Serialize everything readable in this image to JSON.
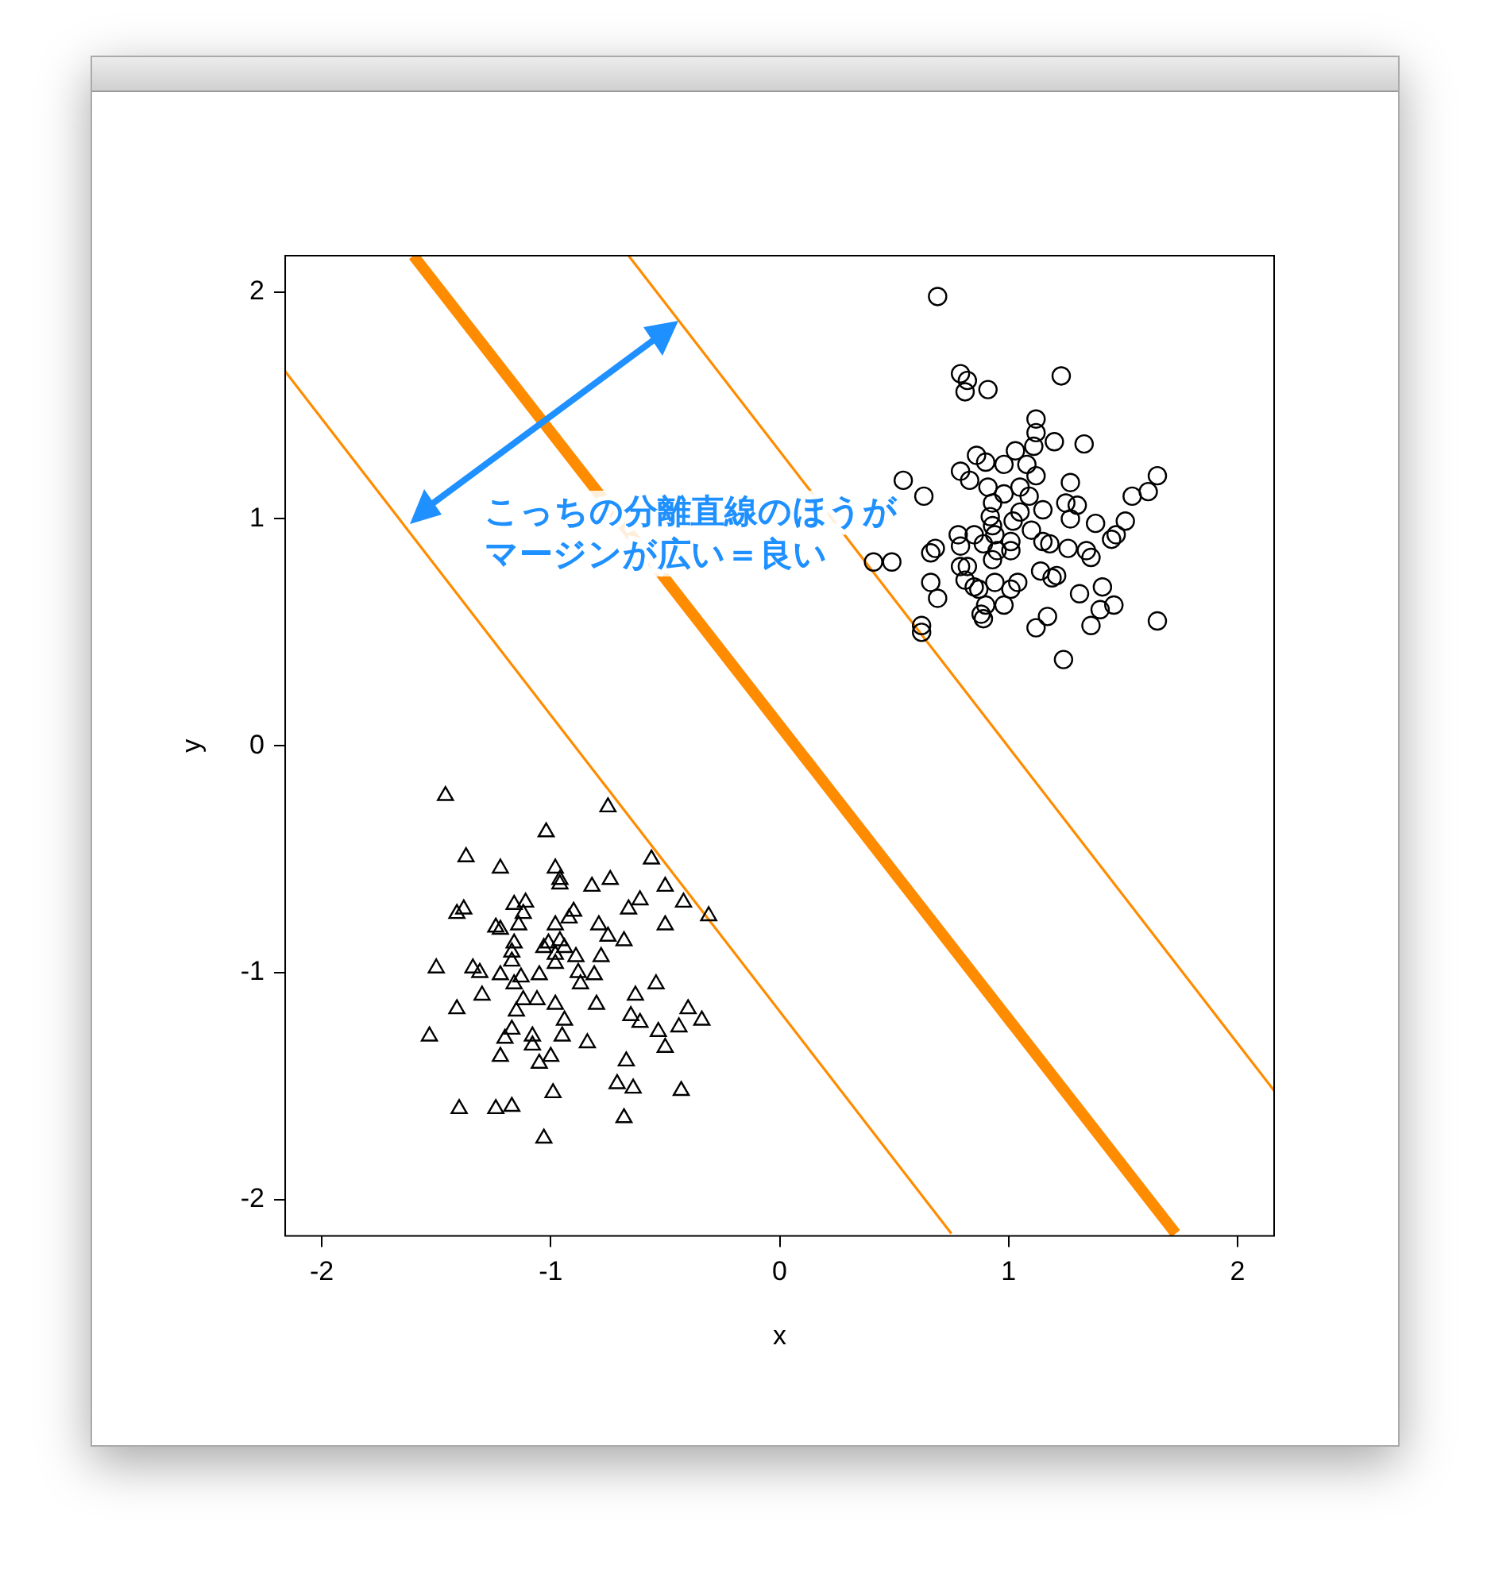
{
  "chart_data": {
    "type": "scatter",
    "xlabel": "x",
    "ylabel": "y",
    "xlim": [
      -2.16,
      2.16
    ],
    "ylim": [
      -2.16,
      2.16
    ],
    "xticks": [
      -2,
      -1,
      0,
      1,
      2
    ],
    "yticks": [
      -2,
      -1,
      0,
      1,
      2
    ],
    "annotations": [
      "こっちの分離直線のほうが",
      "マージンが広い＝良い"
    ],
    "series": [
      {
        "marker": "circle",
        "color": "#000000",
        "x": [
          0.69,
          0.79,
          0.82,
          0.81,
          0.91,
          1.23,
          1.12,
          1.12,
          1.11,
          1.2,
          1.33,
          0.86,
          1.03,
          0.79,
          0.83,
          0.9,
          0.98,
          1.08,
          1.12,
          0.54,
          0.91,
          0.98,
          1.05,
          1.27,
          1.65,
          1.61,
          1.54,
          0.93,
          1.09,
          1.25,
          1.3,
          0.63,
          1.05,
          1.15,
          0.92,
          1.02,
          1.27,
          1.38,
          0.93,
          1.51,
          1.1,
          0.94,
          0.78,
          0.85,
          1.47,
          1.45,
          0.89,
          1.01,
          1.15,
          0.68,
          0.66,
          0.79,
          0.95,
          1.01,
          1.18,
          1.26,
          1.34,
          1.36,
          0.93,
          0.41,
          0.49,
          0.79,
          0.82,
          1.14,
          1.19,
          1.21,
          0.81,
          0.94,
          1.04,
          0.66,
          0.85,
          0.87,
          1.01,
          1.41,
          0.69,
          1.31,
          0.9,
          0.98,
          1.46,
          1.4,
          0.88,
          0.89,
          1.17,
          1.12,
          1.36,
          1.65,
          0.62,
          0.62,
          1.24
        ],
        "values": [
          1.98,
          1.64,
          1.61,
          1.56,
          1.57,
          1.63,
          1.44,
          1.38,
          1.32,
          1.34,
          1.33,
          1.28,
          1.3,
          1.21,
          1.17,
          1.25,
          1.24,
          1.24,
          1.19,
          1.17,
          1.14,
          1.11,
          1.14,
          1.16,
          1.19,
          1.12,
          1.1,
          1.07,
          1.1,
          1.07,
          1.06,
          1.1,
          1.03,
          1.04,
          1.01,
          0.99,
          1.0,
          0.98,
          0.97,
          0.99,
          0.95,
          0.93,
          0.93,
          0.93,
          0.93,
          0.91,
          0.89,
          0.9,
          0.9,
          0.87,
          0.85,
          0.88,
          0.86,
          0.86,
          0.89,
          0.87,
          0.86,
          0.83,
          0.82,
          0.81,
          0.81,
          0.79,
          0.79,
          0.77,
          0.74,
          0.75,
          0.73,
          0.72,
          0.72,
          0.72,
          0.7,
          0.69,
          0.69,
          0.7,
          0.65,
          0.67,
          0.62,
          0.62,
          0.62,
          0.6,
          0.58,
          0.56,
          0.57,
          0.52,
          0.53,
          0.55,
          0.53,
          0.5,
          0.38
        ]
      },
      {
        "marker": "triangle",
        "color": "#000000",
        "x": [
          -1.46,
          -0.75,
          -1.02,
          -1.37,
          -1.22,
          -0.98,
          -0.96,
          -0.96,
          -0.74,
          -0.82,
          -0.56,
          -0.5,
          -0.61,
          -0.66,
          -0.42,
          -0.31,
          -0.5,
          -1.41,
          -1.38,
          -1.16,
          -1.11,
          -1.12,
          -0.9,
          -0.92,
          -0.98,
          -1.14,
          -1.24,
          -1.22,
          -0.79,
          -0.75,
          -0.68,
          -0.96,
          -1.01,
          -1.16,
          -0.94,
          -1.03,
          -1.17,
          -0.98,
          -0.78,
          -0.89,
          -0.98,
          -1.17,
          -1.5,
          -1.34,
          -1.31,
          -1.22,
          -1.13,
          -1.05,
          -0.88,
          -0.81,
          -0.87,
          -0.54,
          -1.3,
          -1.16,
          -0.63,
          -1.12,
          -1.06,
          -0.98,
          -0.8,
          -1.41,
          -1.15,
          -0.65,
          -0.61,
          -0.94,
          -0.4,
          -0.34,
          -0.44,
          -0.53,
          -1.53,
          -1.17,
          -1.2,
          -1.08,
          -1.08,
          -0.95,
          -0.84,
          -0.5,
          -1.22,
          -1.0,
          -1.05,
          -0.67,
          -0.71,
          -0.64,
          -0.43,
          -0.99,
          -1.4,
          -1.24,
          -1.17,
          -0.68,
          -1.03
        ],
        "values": [
          -0.22,
          -0.27,
          -0.38,
          -0.49,
          -0.54,
          -0.54,
          -0.59,
          -0.61,
          -0.59,
          -0.62,
          -0.5,
          -0.62,
          -0.68,
          -0.72,
          -0.69,
          -0.75,
          -0.79,
          -0.74,
          -0.72,
          -0.7,
          -0.69,
          -0.74,
          -0.73,
          -0.76,
          -0.79,
          -0.79,
          -0.8,
          -0.81,
          -0.79,
          -0.84,
          -0.86,
          -0.86,
          -0.87,
          -0.87,
          -0.89,
          -0.89,
          -0.91,
          -0.92,
          -0.93,
          -0.93,
          -0.96,
          -0.95,
          -0.98,
          -0.98,
          -1.0,
          -1.01,
          -1.02,
          -1.01,
          -1.0,
          -1.01,
          -1.05,
          -1.05,
          -1.1,
          -1.05,
          -1.1,
          -1.12,
          -1.12,
          -1.14,
          -1.14,
          -1.16,
          -1.17,
          -1.19,
          -1.22,
          -1.21,
          -1.16,
          -1.21,
          -1.24,
          -1.26,
          -1.28,
          -1.25,
          -1.29,
          -1.28,
          -1.32,
          -1.28,
          -1.31,
          -1.33,
          -1.37,
          -1.37,
          -1.4,
          -1.39,
          -1.49,
          -1.51,
          -1.52,
          -1.53,
          -1.6,
          -1.6,
          -1.59,
          -1.64,
          -1.73
        ]
      },
      {
        "type": "line",
        "marker": "none",
        "line_style": "solid",
        "color": "#ff8c00",
        "x": [
          -0.66,
          2.16
        ],
        "values": [
          2.16,
          -1.52
        ]
      },
      {
        "type": "line",
        "marker": "none",
        "line_style": "solid",
        "color": "#ff8c00",
        "x": [
          -1.6,
          1.73
        ],
        "values": [
          2.16,
          -2.15
        ]
      },
      {
        "type": "line",
        "marker": "none",
        "line_style": "solid",
        "color": "#ff8c00",
        "x": [
          -2.16,
          0.75
        ],
        "values": [
          1.65,
          -2.15
        ]
      }
    ]
  }
}
